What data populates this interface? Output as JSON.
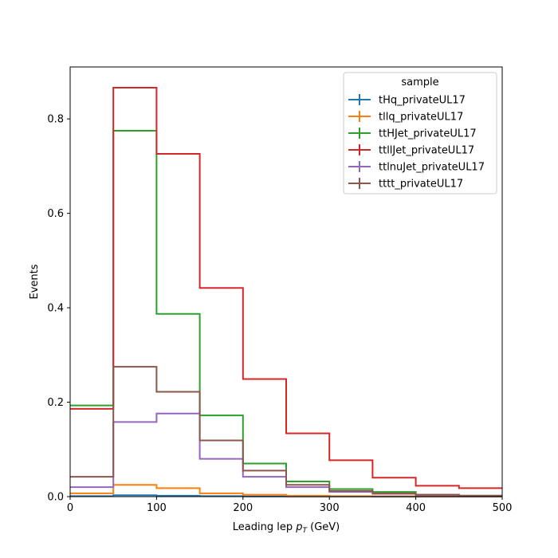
{
  "chart_data": {
    "type": "histogram-step",
    "title": "",
    "xlabel": "Leading lep",
    "xlabel_symbol": "p",
    "xlabel_sub": "T",
    "xlabel_unit": "(GeV)",
    "ylabel": "Events",
    "xlim": [
      0,
      500
    ],
    "ylim": [
      0,
      0.91
    ],
    "xticks": [
      0,
      100,
      200,
      300,
      400,
      500
    ],
    "yticks": [
      0.0,
      0.2,
      0.4,
      0.6,
      0.8
    ],
    "ytick_labels": [
      "0.0",
      "0.2",
      "0.4",
      "0.6",
      "0.8"
    ],
    "grid": false,
    "legend": {
      "title": "sample",
      "position": "top-right"
    },
    "bin_edges": [
      0,
      50,
      100,
      150,
      200,
      250,
      300,
      350,
      400,
      450,
      500
    ],
    "series": [
      {
        "name": "tHq_privateUL17",
        "color": "#1f77b4",
        "values": [
          0.001,
          0.003,
          0.002,
          0.001,
          0.0005,
          0.0003,
          0.0002,
          0.0001,
          0.0001,
          0.0001
        ]
      },
      {
        "name": "tllq_privateUL17",
        "color": "#ff7f0e",
        "values": [
          0.007,
          0.025,
          0.018,
          0.007,
          0.004,
          0.002,
          0.001,
          0.0008,
          0.0005,
          0.0004
        ]
      },
      {
        "name": "ttHJet_privateUL17",
        "color": "#2ca02c",
        "values": [
          0.193,
          0.775,
          0.387,
          0.172,
          0.07,
          0.032,
          0.016,
          0.01,
          0.004,
          0.002
        ]
      },
      {
        "name": "ttllJet_privateUL17",
        "color": "#d62728",
        "values": [
          0.186,
          0.866,
          0.726,
          0.442,
          0.249,
          0.134,
          0.077,
          0.04,
          0.023,
          0.018
        ]
      },
      {
        "name": "ttlnuJet_privateUL17",
        "color": "#9467bd",
        "values": [
          0.02,
          0.158,
          0.176,
          0.08,
          0.042,
          0.02,
          0.01,
          0.006,
          0.003,
          0.002
        ]
      },
      {
        "name": "tttt_privateUL17",
        "color": "#8c564b",
        "values": [
          0.042,
          0.275,
          0.222,
          0.119,
          0.055,
          0.025,
          0.012,
          0.007,
          0.004,
          0.002
        ]
      }
    ]
  }
}
